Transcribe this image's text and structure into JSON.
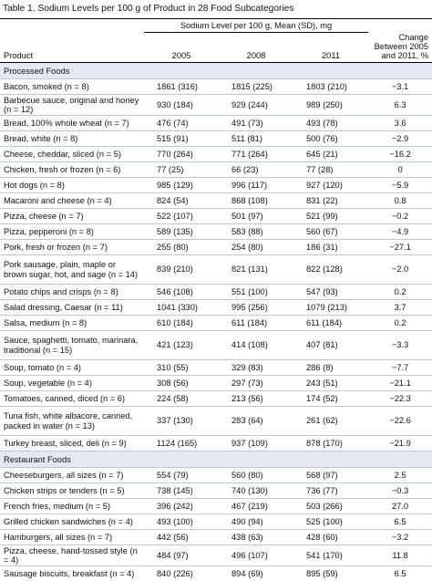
{
  "title": "Table 1. Sodium Levels per 100 g of Product in 28 Food Subcategories",
  "header": {
    "span_label": "Sodium Level per 100 g, Mean (SD), mg",
    "product": "Product",
    "y2005": "2005",
    "y2008": "2008",
    "y2011": "2011",
    "change": "Change Between 2005 and 2011, %"
  },
  "sections": [
    {
      "label": "Processed Foods",
      "rows": [
        {
          "product": "Bacon, smoked (n = 8)",
          "v2005": "1861 (316)",
          "v2008": "1815 (225)",
          "v2011": "1803 (210)",
          "change": "−3.1"
        },
        {
          "product": "Barbecue sauce, original and honey (n = 12)",
          "v2005": "930 (184)",
          "v2008": "929 (244)",
          "v2011": "989 (250)",
          "change": "6.3"
        },
        {
          "product": "Bread, 100% whole wheat (n = 7)",
          "v2005": "476 (74)",
          "v2008": "491 (73)",
          "v2011": "493 (78)",
          "change": "3.6"
        },
        {
          "product": "Bread, white (n = 8)",
          "v2005": "515 (91)",
          "v2008": "511 (81)",
          "v2011": "500 (76)",
          "change": "−2.9"
        },
        {
          "product": "Cheese, cheddar, sliced (n = 5)",
          "v2005": "770 (264)",
          "v2008": "771 (264)",
          "v2011": "645 (21)",
          "change": "−16.2"
        },
        {
          "product": "Chicken, fresh or frozen (n = 6)",
          "v2005": "77 (25)",
          "v2008": "66 (23)",
          "v2011": "77 (28)",
          "change": "0"
        },
        {
          "product": "Hot dogs (n = 8)",
          "v2005": "985 (129)",
          "v2008": "996 (117)",
          "v2011": "927 (120)",
          "change": "−5.9"
        },
        {
          "product": "Macaroni and cheese (n = 4)",
          "v2005": "824 (54)",
          "v2008": "868 (108)",
          "v2011": "831 (22)",
          "change": "0.8"
        },
        {
          "product": "Pizza, cheese (n = 7)",
          "v2005": "522 (107)",
          "v2008": "501 (97)",
          "v2011": "521 (99)",
          "change": "−0.2"
        },
        {
          "product": "Pizza, pepperoni (n = 8)",
          "v2005": "589 (135)",
          "v2008": "583 (88)",
          "v2011": "560 (67)",
          "change": "−4.9"
        },
        {
          "product": "Pork, fresh or frozen (n = 7)",
          "v2005": "255 (80)",
          "v2008": "254 (80)",
          "v2011": "186 (31)",
          "change": "−27.1"
        },
        {
          "product": "Pork sausage, plain, maple or brown sugar, hot, and sage (n = 14)",
          "v2005": "839 (210)",
          "v2008": "821 (131)",
          "v2011": "822 (128)",
          "change": "−2.0"
        },
        {
          "product": "Potato chips and crisps (n = 8)",
          "v2005": "546 (108)",
          "v2008": "551 (100)",
          "v2011": "547 (93)",
          "change": "0.2"
        },
        {
          "product": "Salad dressing, Caesar (n = 11)",
          "v2005": "1041 (330)",
          "v2008": "995 (256)",
          "v2011": "1079 (213)",
          "change": "3.7"
        },
        {
          "product": "Salsa, medium (n = 8)",
          "v2005": "610 (184)",
          "v2008": "611 (184)",
          "v2011": "611 (184)",
          "change": "0.2"
        },
        {
          "product": "Sauce, spaghetti, tomato, marinara, traditional (n = 15)",
          "v2005": "421 (123)",
          "v2008": "414 (108)",
          "v2011": "407 (81)",
          "change": "−3.3"
        },
        {
          "product": "Soup, tomato (n = 4)",
          "v2005": "310 (55)",
          "v2008": "329 (83)",
          "v2011": "286 (8)",
          "change": "−7.7"
        },
        {
          "product": "Soup, vegetable (n = 4)",
          "v2005": "308 (56)",
          "v2008": "297 (73)",
          "v2011": "243 (51)",
          "change": "−21.1"
        },
        {
          "product": "Tomatoes, canned, diced (n = 6)",
          "v2005": "224 (58)",
          "v2008": "213 (56)",
          "v2011": "174 (52)",
          "change": "−22.3"
        },
        {
          "product": "Tuna fish, white albacore, canned, packed in water (n = 13)",
          "v2005": "337 (130)",
          "v2008": "283 (64)",
          "v2011": "261 (62)",
          "change": "−22.6"
        },
        {
          "product": "Turkey breast, sliced, deli (n = 9)",
          "v2005": "1124 (165)",
          "v2008": "937 (109)",
          "v2011": "878 (170)",
          "change": "−21.9"
        }
      ]
    },
    {
      "label": "Restaurant Foods",
      "rows": [
        {
          "product": "Cheeseburgers, all sizes (n = 7)",
          "v2005": "554 (79)",
          "v2008": "560 (80)",
          "v2011": "568 (97)",
          "change": "2.5"
        },
        {
          "product": "Chicken strips or tenders (n = 5)",
          "v2005": "738 (145)",
          "v2008": "740 (130)",
          "v2011": "736 (77)",
          "change": "−0.3"
        },
        {
          "product": "French fries, medium (n = 5)",
          "v2005": "396 (242)",
          "v2008": "467 (219)",
          "v2011": "503 (266)",
          "change": "27.0"
        },
        {
          "product": "Grilled chicken sandwiches (n = 4)",
          "v2005": "493 (100)",
          "v2008": "490 (94)",
          "v2011": "525 (100)",
          "change": "6.5"
        },
        {
          "product": "Hamburgers, all sizes (n = 7)",
          "v2005": "442 (56)",
          "v2008": "438 (63)",
          "v2011": "428 (60)",
          "change": "−3.2"
        },
        {
          "product": "Pizza, cheese, hand-tossed style (n = 4)",
          "v2005": "484 (97)",
          "v2008": "496 (107)",
          "v2011": "541 (170)",
          "change": "11.8"
        },
        {
          "product": "Sausage biscuits, breakfast (n = 4)",
          "v2005": "840 (226)",
          "v2008": "894 (69)",
          "v2011": "895 (59)",
          "change": "6.5"
        }
      ]
    }
  ]
}
